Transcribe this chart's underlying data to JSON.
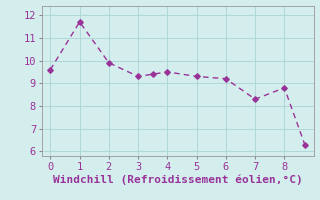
{
  "x": [
    0,
    1,
    2,
    3,
    3.5,
    4,
    5,
    6,
    7,
    8,
    8.7
  ],
  "y": [
    9.6,
    11.7,
    9.9,
    9.3,
    9.4,
    9.5,
    9.3,
    9.2,
    8.3,
    8.8,
    6.3
  ],
  "line_color": "#993399",
  "bg_color": "#d4eeee",
  "xlabel": "Windchill (Refroidissement éolien,°C)",
  "xlim": [
    -0.3,
    9.0
  ],
  "ylim": [
    5.8,
    12.4
  ],
  "yticks": [
    6,
    7,
    8,
    9,
    10,
    11,
    12
  ],
  "xticks": [
    0,
    1,
    2,
    3,
    4,
    5,
    6,
    7,
    8
  ],
  "grid_color": "#b0d8d8",
  "marker": "D",
  "markersize": 2.8,
  "linewidth": 1.0,
  "xlabel_fontsize": 8,
  "tick_fontsize": 7.5
}
